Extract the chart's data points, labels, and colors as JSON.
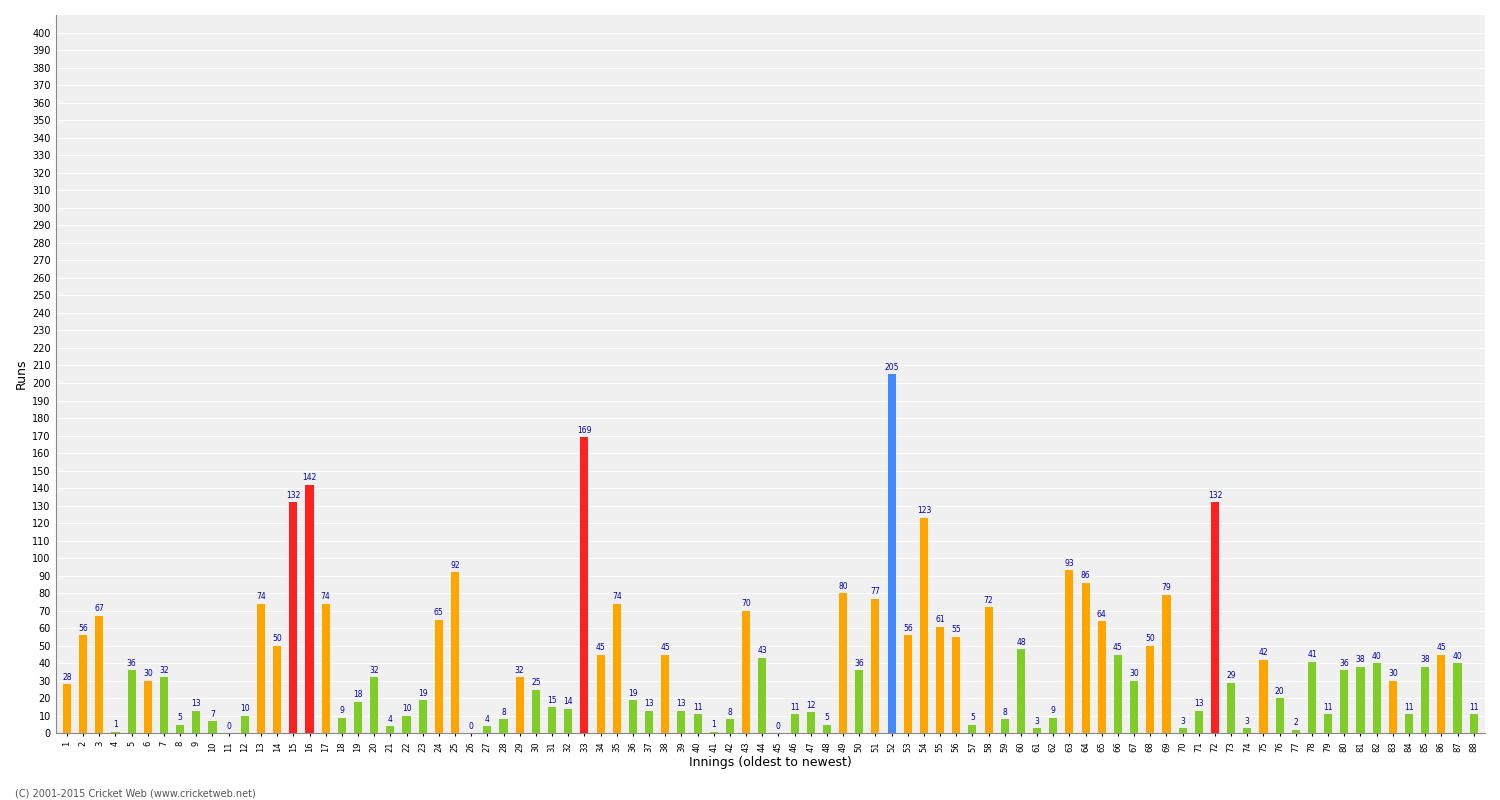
{
  "xlabel": "Innings (oldest to newest)",
  "ylabel": "Runs",
  "background_color": "#ffffff",
  "plot_bg_color": "#f0f0f0",
  "grid_color": "#ffffff",
  "ylim": [
    0,
    410
  ],
  "yticks": [
    0,
    10,
    20,
    30,
    40,
    50,
    60,
    70,
    80,
    90,
    100,
    110,
    120,
    130,
    140,
    150,
    160,
    170,
    180,
    190,
    200,
    210,
    220,
    230,
    240,
    250,
    260,
    270,
    280,
    290,
    300,
    310,
    320,
    330,
    340,
    350,
    360,
    370,
    380,
    390,
    400
  ],
  "innings": [
    "1",
    "2",
    "3",
    "4",
    "5",
    "6",
    "7",
    "8",
    "9",
    "10",
    "11",
    "12",
    "13",
    "14",
    "15",
    "16",
    "17",
    "18",
    "19",
    "20",
    "21",
    "22",
    "23",
    "24",
    "25",
    "26",
    "27",
    "28",
    "29",
    "30",
    "31",
    "32",
    "33",
    "34",
    "35",
    "36",
    "37",
    "38",
    "39",
    "40",
    "41",
    "42",
    "43",
    "44",
    "45",
    "46",
    "47",
    "48",
    "49",
    "50",
    "51",
    "52",
    "53",
    "54",
    "55",
    "56",
    "57",
    "58",
    "59",
    "60",
    "61",
    "62",
    "63",
    "64",
    "65",
    "66",
    "67",
    "68",
    "69",
    "70",
    "71",
    "72",
    "73",
    "74",
    "75",
    "76",
    "77",
    "78",
    "79",
    "80",
    "81",
    "82",
    "83",
    "84",
    "85",
    "86",
    "87",
    "88"
  ],
  "scores": [
    28,
    56,
    67,
    1,
    36,
    30,
    32,
    5,
    13,
    7,
    0,
    10,
    74,
    50,
    132,
    142,
    74,
    9,
    18,
    32,
    4,
    10,
    19,
    65,
    92,
    0,
    4,
    8,
    32,
    25,
    15,
    14,
    169,
    45,
    74,
    19,
    13,
    45,
    13,
    11,
    1,
    8,
    70,
    43,
    0,
    11,
    12,
    5,
    80,
    36,
    77,
    205,
    56,
    123,
    61,
    55,
    5,
    72,
    8,
    48,
    3,
    9,
    93,
    86,
    64,
    45,
    30,
    50,
    79,
    3,
    13,
    132,
    29,
    3,
    42,
    20,
    2,
    41,
    11,
    36,
    38,
    40,
    30,
    11,
    38,
    45,
    40,
    11
  ],
  "colors": [
    "orange",
    "orange",
    "orange",
    "green",
    "green",
    "orange",
    "green",
    "green",
    "green",
    "green",
    "green",
    "green",
    "orange",
    "orange",
    "red",
    "red",
    "orange",
    "green",
    "green",
    "green",
    "green",
    "green",
    "green",
    "orange",
    "orange",
    "green",
    "green",
    "green",
    "orange",
    "green",
    "green",
    "green",
    "red",
    "orange",
    "orange",
    "green",
    "green",
    "orange",
    "green",
    "green",
    "green",
    "green",
    "orange",
    "green",
    "green",
    "green",
    "green",
    "green",
    "orange",
    "green",
    "orange",
    "blue",
    "orange",
    "orange",
    "orange",
    "orange",
    "green",
    "orange",
    "green",
    "green",
    "green",
    "green",
    "orange",
    "orange",
    "orange",
    "green",
    "green",
    "orange",
    "orange",
    "green",
    "green",
    "red",
    "green",
    "green",
    "orange",
    "green",
    "green",
    "green",
    "green",
    "green",
    "green",
    "green",
    "orange",
    "green",
    "green",
    "orange",
    "green",
    "green"
  ],
  "footer": "(C) 2001-2015 Cricket Web (www.cricketweb.net)",
  "bar_width": 0.5,
  "orange_color": "#FFA500",
  "green_color": "#80CC28",
  "red_color": "#FF2020",
  "blue_color": "#4488FF",
  "label_color": "#0000AA",
  "label_fontsize": 5.5,
  "tick_fontsize": 7,
  "axis_label_fontsize": 9
}
